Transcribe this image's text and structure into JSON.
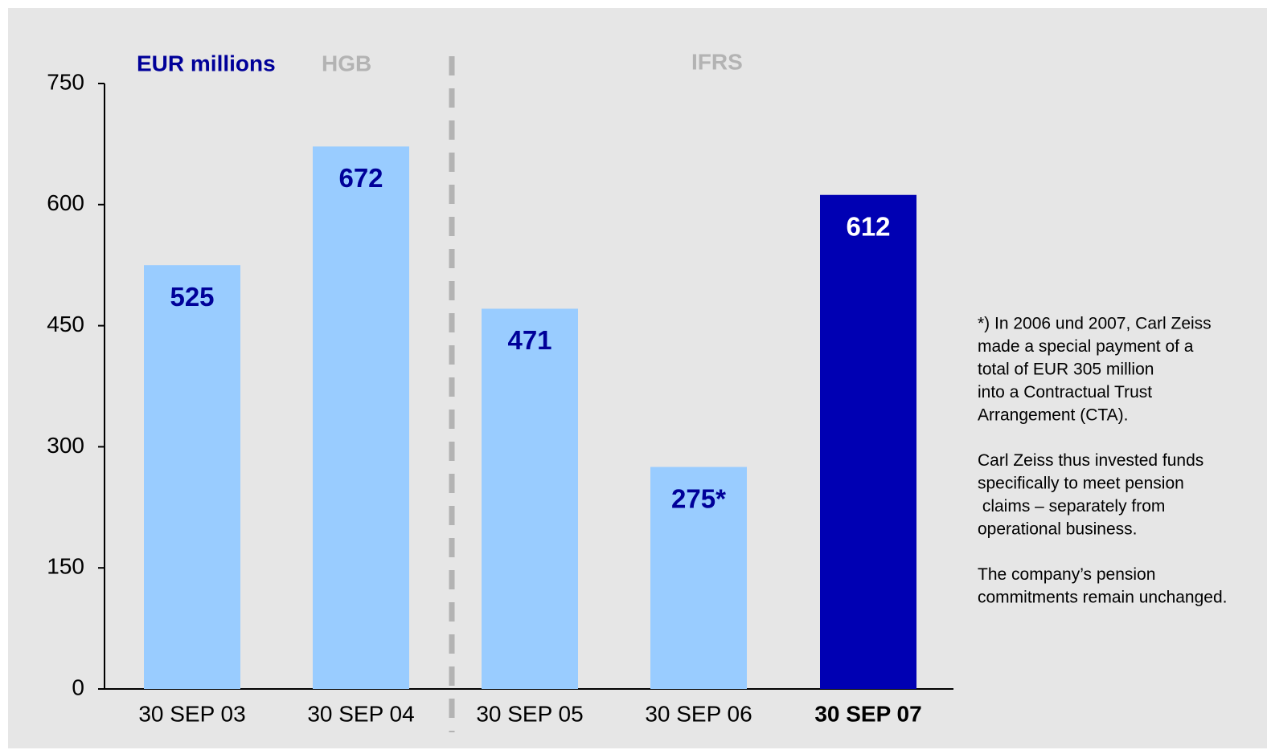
{
  "chart_data": {
    "type": "bar",
    "unit_label": "EUR millions",
    "annotations": [
      "HGB",
      "IFRS"
    ],
    "categories": [
      "30 SEP 03",
      "30 SEP 04",
      "30 SEP 05",
      "30 SEP 06",
      "30 SEP 07"
    ],
    "values": [
      525,
      672,
      471,
      275,
      612
    ],
    "value_labels": [
      "525",
      "672",
      "471",
      "275*",
      "612"
    ],
    "colors": [
      "#99ccff",
      "#99ccff",
      "#99ccff",
      "#99ccff",
      "#0000b3"
    ],
    "value_label_colors": [
      "#000099",
      "#000099",
      "#000099",
      "#000099",
      "#ffffff"
    ],
    "category_colors": [
      "#000000",
      "#000000",
      "#000000",
      "#000000",
      "#000099"
    ],
    "ylim": [
      0,
      750
    ],
    "yticks": [
      0,
      150,
      300,
      450,
      600,
      750
    ],
    "grid": false,
    "note": [
      [
        "*) In 2006 und 2007, Carl Zeiss",
        "made a special payment of a",
        "total of EUR 305 million",
        "into a Contractual Trust",
        "Arrangement (CTA)."
      ],
      [
        "Carl Zeiss thus invested funds",
        "specifically to meet pension",
        " claims – separately from",
        "operational business."
      ],
      [
        "The company’s pension",
        "commitments remain unchanged."
      ]
    ]
  }
}
